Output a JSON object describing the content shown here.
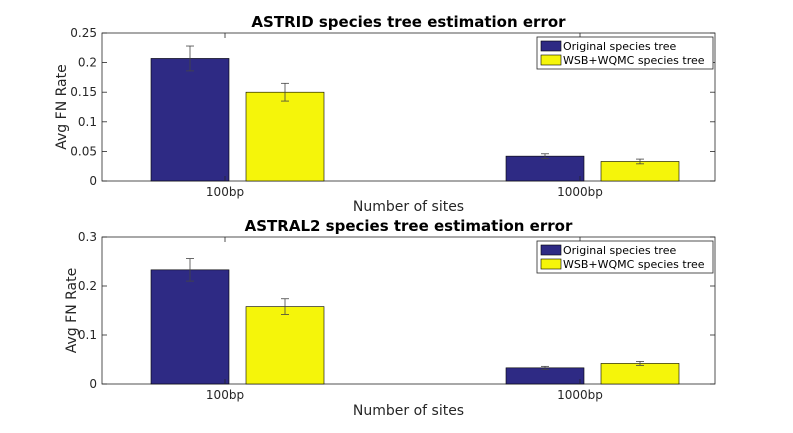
{
  "chart_data": [
    {
      "type": "bar",
      "title": "ASTRID species tree estimation error",
      "xlabel": "Number of sites",
      "ylabel": "Avg FN Rate",
      "categories": [
        "100bp",
        "1000bp"
      ],
      "ylim": [
        0,
        0.25
      ],
      "yticks": [
        0,
        0.05,
        0.1,
        0.15,
        0.2,
        0.25
      ],
      "ytick_labels": [
        "0",
        "0.05",
        "0.1",
        "0.15",
        "0.2",
        "0.25"
      ],
      "grid": false,
      "legend_position": "top-right",
      "series": [
        {
          "name": "Original species tree",
          "color": "#2e2a84",
          "values": [
            0.207,
            0.042
          ],
          "errors": [
            0.021,
            0.004
          ]
        },
        {
          "name": "WSB+WQMC species tree",
          "color": "#f5f50a",
          "values": [
            0.15,
            0.033
          ],
          "errors": [
            0.015,
            0.004
          ]
        }
      ]
    },
    {
      "type": "bar",
      "title": "ASTRAL2 species tree estimation error",
      "xlabel": "Number of sites",
      "ylabel": "Avg FN Rate",
      "categories": [
        "100bp",
        "1000bp"
      ],
      "ylim": [
        0,
        0.3
      ],
      "yticks": [
        0,
        0.1,
        0.2,
        0.3
      ],
      "ytick_labels": [
        "0",
        "0.1",
        "0.2",
        "0.3"
      ],
      "grid": false,
      "legend_position": "top-right",
      "series": [
        {
          "name": "Original species tree",
          "color": "#2e2a84",
          "values": [
            0.233,
            0.033
          ],
          "errors": [
            0.023,
            0.003
          ]
        },
        {
          "name": "WSB+WQMC species tree",
          "color": "#f5f50a",
          "values": [
            0.158,
            0.042
          ],
          "errors": [
            0.016,
            0.004
          ]
        }
      ]
    }
  ]
}
